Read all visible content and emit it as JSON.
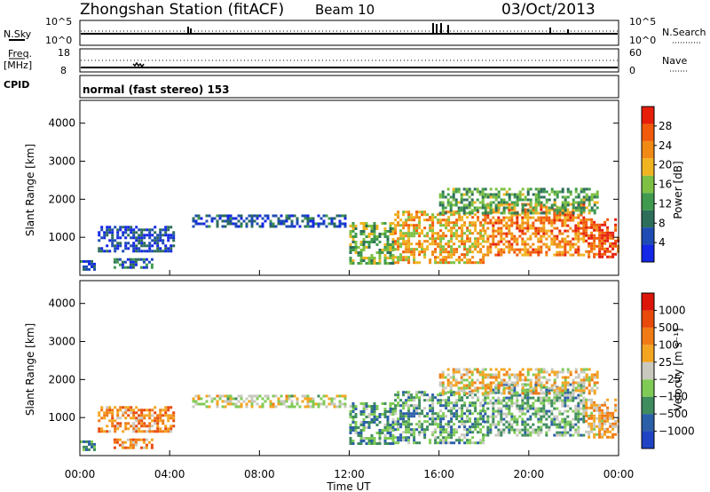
{
  "header": {
    "station": "Zhongshan Station (fitACF)",
    "beam": "Beam 10",
    "date": "03/Oct/2013"
  },
  "summary_panel": {
    "nsky_label": "N.Sky",
    "nsky_ticks": [
      "10^5",
      "10^0"
    ],
    "nsearch_label": "N.Search",
    "nsearch_ticks": [
      "10^5",
      "10^0"
    ],
    "freq_label_1": "Freq.",
    "freq_label_2": "[MHz]",
    "freq_ticks": [
      "18",
      "8"
    ],
    "nave_label": "Nave",
    "nave_ticks": [
      "60",
      "0"
    ],
    "cpid_label": "CPID",
    "cpid_text": "normal (fast stereo) 153"
  },
  "colors": {
    "power_scale": [
      "#1426e6",
      "#1e4cb4",
      "#2d6e5a",
      "#3f9a4e",
      "#7dc043",
      "#f0b420",
      "#f08a14",
      "#f05a0a",
      "#e61e0a"
    ],
    "velocity_scale": [
      "#1f43c4",
      "#2b5fa8",
      "#3f8c5e",
      "#7fcb55",
      "#c9c9c0",
      "#f3a521",
      "#f07a14",
      "#e84a0c",
      "#dc140a"
    ]
  },
  "chart_data": [
    {
      "type": "heatmap",
      "name": "Power",
      "ylabel": "Slant Range [km]",
      "y_ticks": [
        1000,
        2000,
        3000,
        4000
      ],
      "colorbar_label": "Power [dB]",
      "colorbar_ticks": [
        "4",
        "8",
        "12",
        "16",
        "20",
        "24",
        "28"
      ],
      "regions": [
        {
          "t0": 0.0,
          "t1": 0.7,
          "r0": 180,
          "r1": 400,
          "v": 0.2
        },
        {
          "t0": 1.5,
          "t1": 3.2,
          "r0": 180,
          "r1": 450,
          "v": 0.25
        },
        {
          "t0": 0.8,
          "t1": 4.2,
          "r0": 600,
          "r1": 1300,
          "v": 0.15
        },
        {
          "t0": 5.0,
          "t1": 11.8,
          "r0": 1300,
          "r1": 1600,
          "v": 0.2
        },
        {
          "t0": 12.0,
          "t1": 14.0,
          "r0": 300,
          "r1": 1400,
          "v": 0.45
        },
        {
          "t0": 14.0,
          "t1": 18.0,
          "r0": 350,
          "r1": 1700,
          "v": 0.65
        },
        {
          "t0": 18.0,
          "t1": 22.5,
          "r0": 500,
          "r1": 1900,
          "v": 0.75
        },
        {
          "t0": 22.5,
          "t1": 24.0,
          "r0": 500,
          "r1": 1500,
          "v": 0.85
        },
        {
          "t0": 16.0,
          "t1": 23.0,
          "r0": 1600,
          "r1": 2300,
          "v": 0.4
        }
      ]
    },
    {
      "type": "heatmap",
      "name": "Velocity",
      "ylabel": "Slant Range [km]",
      "y_ticks": [
        1000,
        2000,
        3000,
        4000
      ],
      "colorbar_label": "Velocity [m s⁻¹]",
      "colorbar_ticks": [
        "1000",
        "500",
        "100",
        "25",
        "−25",
        "−100",
        "−500",
        "−1000"
      ],
      "regions": [
        {
          "t0": 0.0,
          "t1": 0.7,
          "r0": 180,
          "r1": 400,
          "v": 0.3
        },
        {
          "t0": 1.5,
          "t1": 3.2,
          "r0": 180,
          "r1": 450,
          "v": 0.7
        },
        {
          "t0": 0.8,
          "t1": 4.2,
          "r0": 600,
          "r1": 1300,
          "v": 0.68
        },
        {
          "t0": 5.0,
          "t1": 11.8,
          "r0": 1300,
          "r1": 1600,
          "v": 0.5
        },
        {
          "t0": 12.0,
          "t1": 14.0,
          "r0": 300,
          "r1": 1400,
          "v": 0.3
        },
        {
          "t0": 14.0,
          "t1": 18.0,
          "r0": 350,
          "r1": 1700,
          "v": 0.32
        },
        {
          "t0": 18.0,
          "t1": 22.5,
          "r0": 500,
          "r1": 1900,
          "v": 0.35
        },
        {
          "t0": 22.5,
          "t1": 24.0,
          "r0": 500,
          "r1": 1500,
          "v": 0.6
        },
        {
          "t0": 16.0,
          "t1": 23.0,
          "r0": 1600,
          "r1": 2300,
          "v": 0.55
        }
      ]
    }
  ],
  "x_axis": {
    "ticks": [
      "00:00",
      "04:00",
      "08:00",
      "12:00",
      "16:00",
      "20:00",
      "00:00"
    ],
    "label": "Time UT"
  }
}
